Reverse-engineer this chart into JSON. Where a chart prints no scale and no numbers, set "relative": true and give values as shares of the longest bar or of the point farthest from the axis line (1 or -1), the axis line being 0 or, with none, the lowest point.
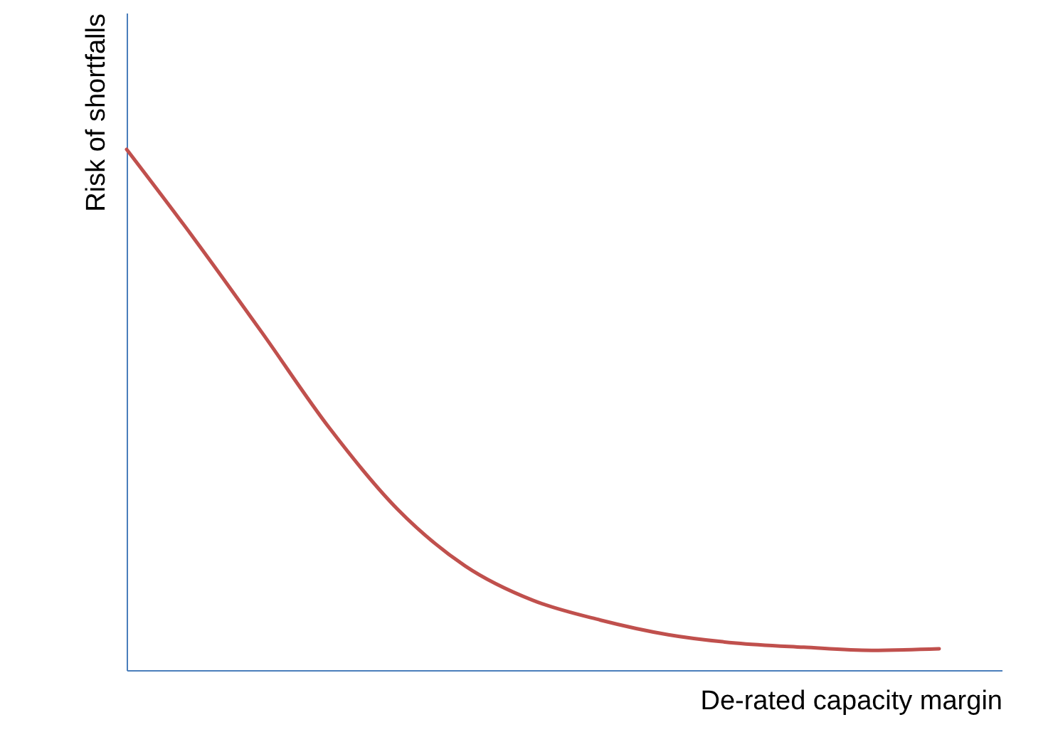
{
  "chart_data": {
    "type": "line",
    "relative": true,
    "xlabel": "De-rated capacity margin",
    "ylabel": "Risk of shortfalls",
    "tick_labels": false,
    "categories": [
      null,
      null,
      null,
      null,
      null,
      null,
      null,
      null,
      null,
      null,
      null,
      null,
      null
    ],
    "series": [
      {
        "color": "#c0504d",
        "values": [
          1.0,
          0.828,
          0.648,
          0.464,
          0.309,
          0.2,
          0.134,
          0.096,
          0.068,
          0.052,
          0.044,
          0.038,
          0.041
        ]
      }
    ]
  }
}
